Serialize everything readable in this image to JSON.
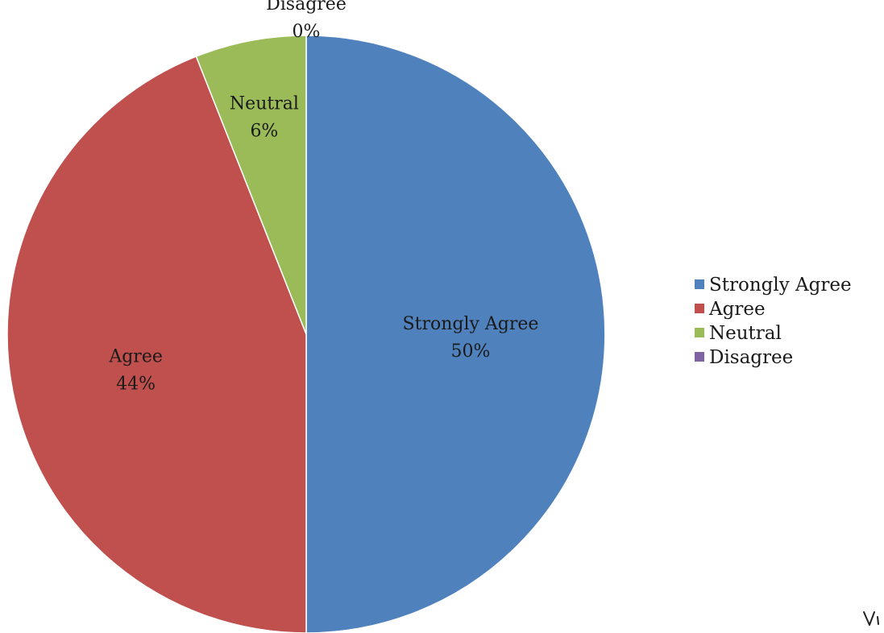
{
  "chart_data": {
    "type": "pie",
    "title": "",
    "slices": [
      {
        "label": "Strongly Agree",
        "value": 50,
        "display": "50%",
        "color": "#4F81BD"
      },
      {
        "label": "Agree",
        "value": 44,
        "display": "44%",
        "color": "#C0504D"
      },
      {
        "label": "Neutral",
        "value": 6,
        "display": "6%",
        "color": "#9BBB59"
      },
      {
        "label": "Disagree",
        "value": 0,
        "display": "0%",
        "color": "#8064A2"
      }
    ],
    "start_angle_deg": 0,
    "direction": "clockwise",
    "legend_position": "right"
  }
}
